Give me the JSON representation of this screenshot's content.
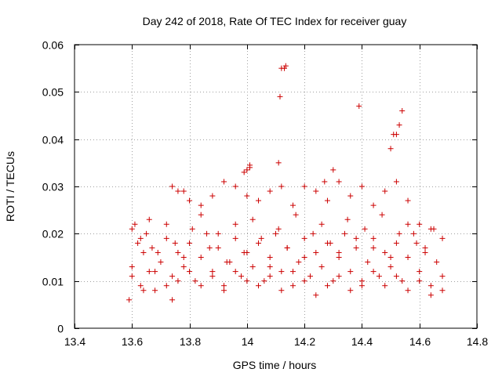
{
  "chart_data": {
    "type": "scatter",
    "title": "Day 242 of 2018, Rate Of TEC Index for receiver guay",
    "xlabel": "GPS time / hours",
    "ylabel": "ROTI / TECUs",
    "xlim": [
      13.4,
      14.8
    ],
    "ylim": [
      0,
      0.06
    ],
    "xticks": [
      13.4,
      13.6,
      13.8,
      14.0,
      14.2,
      14.4,
      14.6,
      14.8
    ],
    "xtick_labels": [
      "13.4",
      "13.6",
      "13.8",
      "14",
      "14.2",
      "14.4",
      "14.6",
      "14.8"
    ],
    "yticks": [
      0,
      0.01,
      0.02,
      0.03,
      0.04,
      0.05,
      0.06
    ],
    "ytick_labels": [
      "0",
      "0.01",
      "0.02",
      "0.03",
      "0.04",
      "0.05",
      "0.06"
    ],
    "grid": true,
    "marker": "+",
    "color": "#cc0000",
    "series": [
      {
        "name": "ROTI",
        "x": [
          13.59,
          13.6,
          13.61,
          13.62,
          13.63,
          13.64,
          13.65,
          13.66,
          13.67,
          13.68,
          13.7,
          13.72,
          13.74,
          13.76,
          13.78,
          13.8,
          13.82,
          13.84,
          13.86,
          13.88,
          13.9,
          13.92,
          13.94,
          13.96,
          13.98,
          14.0,
          14.02,
          14.04,
          14.06,
          14.08,
          14.1,
          14.12,
          14.14,
          14.16,
          14.18,
          14.2,
          14.22,
          14.24,
          14.26,
          14.28,
          14.3,
          14.32,
          14.34,
          14.36,
          14.38,
          14.4,
          14.42,
          14.44,
          14.46,
          14.48,
          14.5,
          14.52,
          14.54,
          14.56,
          14.58,
          14.6,
          14.62,
          14.64,
          14.66,
          14.68,
          13.6,
          13.63,
          13.66,
          13.69,
          13.72,
          13.75,
          13.78,
          13.81,
          13.84,
          13.87,
          13.9,
          13.93,
          13.96,
          13.99,
          14.02,
          14.05,
          14.08,
          14.11,
          14.14,
          14.17,
          14.2,
          14.23,
          14.26,
          14.29,
          14.32,
          14.35,
          14.38,
          14.41,
          14.44,
          14.47,
          14.5,
          14.53,
          14.56,
          14.59,
          14.62,
          14.65,
          14.68,
          13.74,
          13.76,
          13.78,
          13.8,
          13.84,
          13.88,
          13.92,
          13.96,
          14.0,
          14.01,
          14.04,
          14.08,
          14.12,
          14.16,
          14.2,
          14.24,
          14.28,
          14.32,
          14.36,
          14.4,
          14.44,
          14.48,
          14.52,
          14.56,
          14.6,
          14.64,
          13.6,
          13.64,
          13.68,
          13.72,
          13.76,
          13.8,
          13.84,
          13.88,
          13.92,
          13.96,
          14.0,
          14.04,
          14.08,
          14.12,
          14.16,
          14.2,
          14.24,
          14.28,
          14.32,
          14.36,
          14.4,
          14.44,
          14.48,
          14.52,
          14.56,
          14.6,
          14.64,
          14.68,
          14.12,
          14.13,
          14.135,
          14.115,
          14.39,
          14.54,
          14.53,
          14.52,
          14.51,
          14.5,
          14.11,
          14.01,
          14.0,
          13.99,
          14.3,
          14.27,
          13.74
        ],
        "y": [
          0.006,
          0.013,
          0.022,
          0.018,
          0.009,
          0.016,
          0.02,
          0.012,
          0.017,
          0.008,
          0.014,
          0.019,
          0.011,
          0.016,
          0.013,
          0.018,
          0.01,
          0.015,
          0.02,
          0.012,
          0.017,
          0.009,
          0.014,
          0.019,
          0.011,
          0.016,
          0.013,
          0.018,
          0.01,
          0.015,
          0.02,
          0.012,
          0.017,
          0.009,
          0.014,
          0.019,
          0.011,
          0.016,
          0.013,
          0.018,
          0.01,
          0.015,
          0.02,
          0.012,
          0.017,
          0.009,
          0.014,
          0.019,
          0.011,
          0.016,
          0.013,
          0.018,
          0.01,
          0.015,
          0.02,
          0.012,
          0.017,
          0.009,
          0.014,
          0.008,
          0.021,
          0.019,
          0.023,
          0.016,
          0.022,
          0.018,
          0.015,
          0.021,
          0.024,
          0.017,
          0.02,
          0.014,
          0.022,
          0.016,
          0.023,
          0.019,
          0.013,
          0.021,
          0.017,
          0.024,
          0.015,
          0.02,
          0.022,
          0.018,
          0.016,
          0.023,
          0.019,
          0.021,
          0.017,
          0.024,
          0.015,
          0.02,
          0.022,
          0.018,
          0.016,
          0.021,
          0.019,
          0.03,
          0.029,
          0.029,
          0.027,
          0.026,
          0.028,
          0.031,
          0.03,
          0.028,
          0.034,
          0.027,
          0.029,
          0.03,
          0.026,
          0.03,
          0.029,
          0.027,
          0.031,
          0.028,
          0.03,
          0.026,
          0.029,
          0.031,
          0.027,
          0.022,
          0.021,
          0.011,
          0.008,
          0.012,
          0.009,
          0.01,
          0.012,
          0.009,
          0.011,
          0.008,
          0.012,
          0.01,
          0.009,
          0.011,
          0.008,
          0.012,
          0.01,
          0.007,
          0.009,
          0.011,
          0.008,
          0.01,
          0.012,
          0.009,
          0.011,
          0.008,
          0.01,
          0.007,
          0.011,
          0.055,
          0.055,
          0.0555,
          0.049,
          0.047,
          0.046,
          0.043,
          0.041,
          0.041,
          0.038,
          0.035,
          0.0345,
          0.0335,
          0.033,
          0.0335,
          0.031,
          0.006
        ]
      }
    ]
  }
}
